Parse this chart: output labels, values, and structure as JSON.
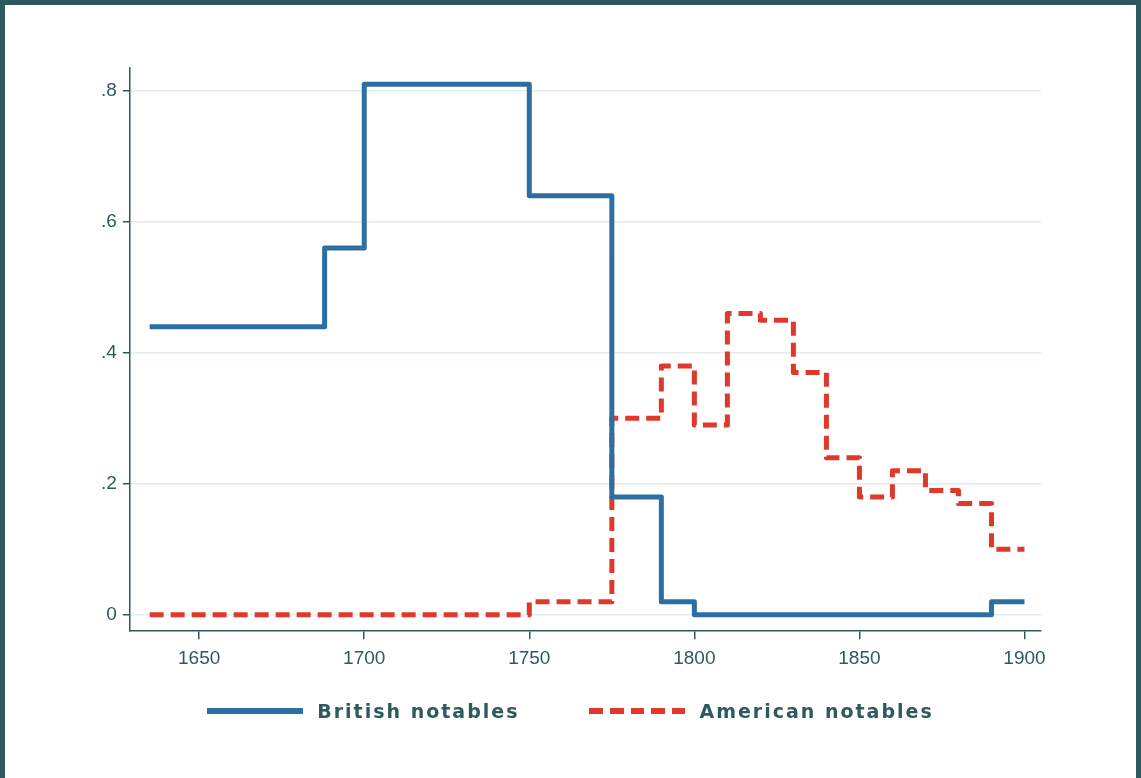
{
  "chart_data": {
    "type": "step",
    "xlim": [
      1629,
      1905
    ],
    "xticks": [
      1650,
      1700,
      1750,
      1800,
      1850,
      1900
    ],
    "ylim": [
      -0.025,
      0.835
    ],
    "yticks": [
      {
        "value": 0,
        "label": "0"
      },
      {
        "value": 0.2,
        "label": ".2"
      },
      {
        "value": 0.4,
        "label": ".4"
      },
      {
        "value": 0.6,
        "label": ".6"
      },
      {
        "value": 0.8,
        "label": ".8"
      }
    ],
    "grid": "y",
    "legend": "bottom",
    "series": [
      {
        "name": "British notables",
        "color": "#2e6fa3",
        "line_style": "solid",
        "x": [
          1635,
          1688,
          1700,
          1750,
          1775,
          1790,
          1800,
          1890,
          1900
        ],
        "values": [
          0.44,
          0.56,
          0.81,
          0.64,
          0.18,
          0.02,
          0,
          0.02,
          0.02
        ]
      },
      {
        "name": "American notables",
        "color": "#e0392b",
        "line_style": "dashed",
        "x": [
          1635,
          1750,
          1775,
          1790,
          1800,
          1810,
          1820,
          1830,
          1840,
          1850,
          1860,
          1870,
          1880,
          1890,
          1900
        ],
        "values": [
          0,
          0.02,
          0.3,
          0.38,
          0.29,
          0.46,
          0.45,
          0.37,
          0.24,
          0.18,
          0.22,
          0.19,
          0.17,
          0.1,
          0.1
        ]
      }
    ]
  }
}
